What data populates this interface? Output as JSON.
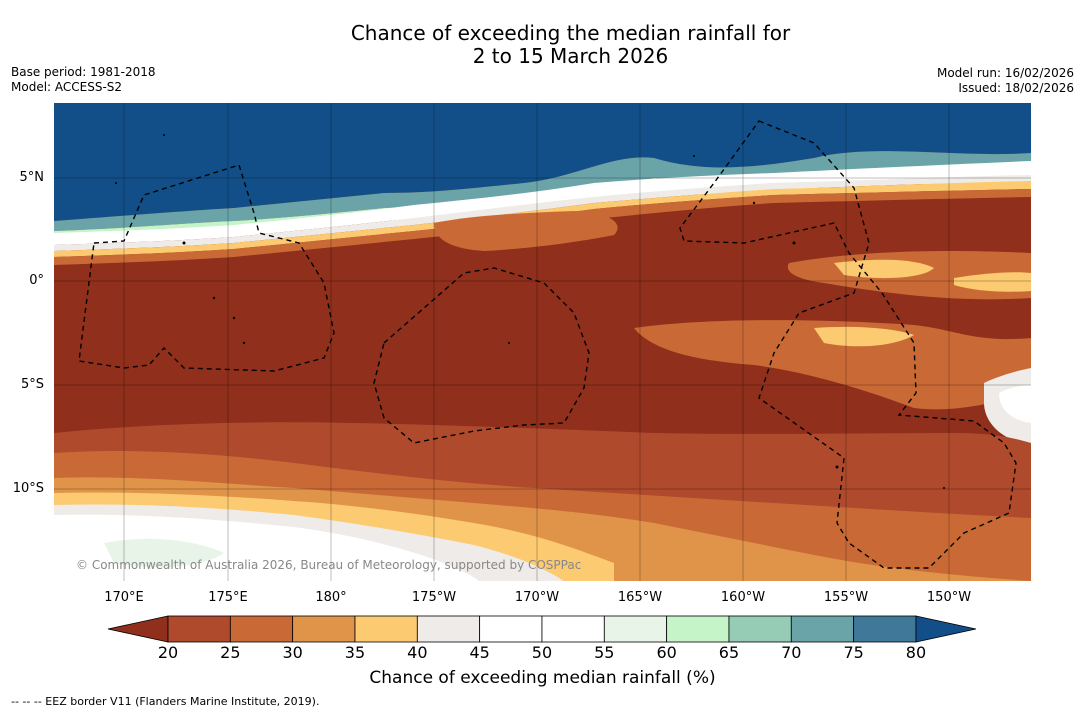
{
  "title": {
    "line1": "Chance of exceeding the median rainfall for",
    "line2": "2 to 15 March 2026"
  },
  "meta": {
    "base_period": "Base period: 1981-2018",
    "model": "Model: ACCESS-S2",
    "model_run": "Model run: 16/02/2026",
    "issued": "Issued: 18/02/2026"
  },
  "map": {
    "lat_labels": [
      "5°N",
      "0°",
      "5°S",
      "10°S"
    ],
    "lon_labels": [
      "170°E",
      "175°E",
      "180°",
      "175°W",
      "170°W",
      "165°W",
      "160°W",
      "155°W",
      "150°W"
    ],
    "copyright": "© Commonwealth of Australia 2026, Bureau of Meteorology, supported by COSPPac"
  },
  "colorbar": {
    "ticks": [
      "20",
      "25",
      "30",
      "35",
      "40",
      "45",
      "50",
      "55",
      "60",
      "65",
      "70",
      "75",
      "80"
    ],
    "colors": [
      "#8f2f1c",
      "#b04a2c",
      "#c96a36",
      "#e0944a",
      "#fcca70",
      "#eeebe8",
      "#ffffff",
      "#ffffff",
      "#e8f4e8",
      "#c4f4c8",
      "#96ccb6",
      "#6aa4a8",
      "#3f7898",
      "#124f88"
    ],
    "label": "Chance of exceeding median rainfall (%)"
  },
  "footer": "-- -- -- EEZ border V11 (Flanders Marine Institute, 2019)."
}
